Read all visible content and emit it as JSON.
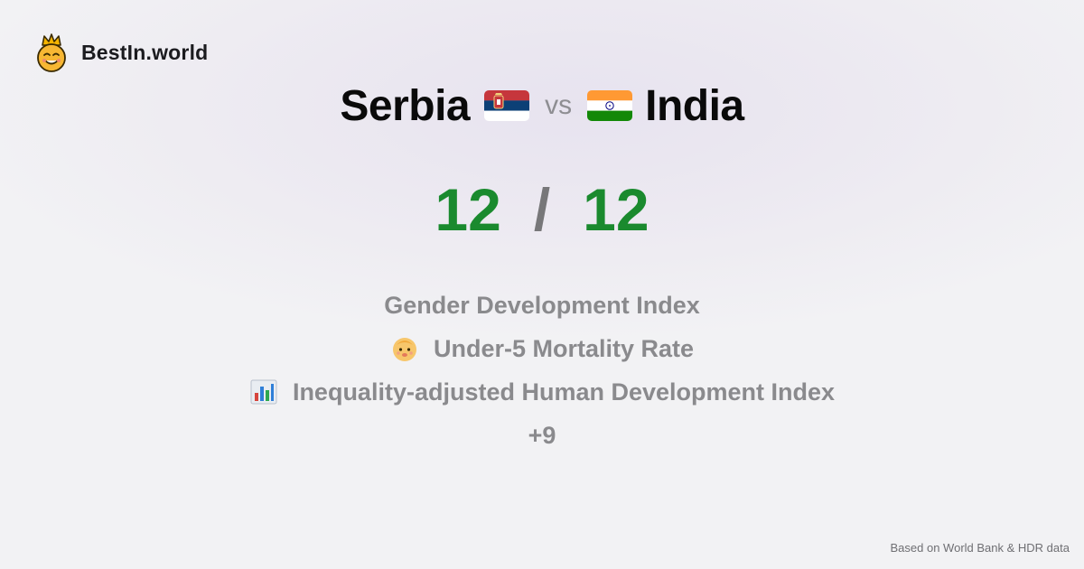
{
  "brand": {
    "name": "BestIn.world",
    "logo_icon": "crowned-smiley-icon"
  },
  "comparison": {
    "left": {
      "name": "Serbia",
      "flag_icon": "serbia-flag-icon",
      "score": "12"
    },
    "vs_label": "vs",
    "right": {
      "name": "India",
      "flag_icon": "india-flag-icon",
      "score": "12"
    },
    "separator": "/"
  },
  "metrics": [
    {
      "label": "Gender Development Index",
      "icon": ""
    },
    {
      "label": "Under-5 Mortality Rate",
      "icon": "baby-icon"
    },
    {
      "label": "Inequality-adjusted Human Development Index",
      "icon": "bar-chart-icon"
    }
  ],
  "more_label": "+9",
  "footer": {
    "source": "Based on World Bank & HDR data"
  },
  "colors": {
    "score": "#1a8a2e",
    "muted": "#8a8a8d",
    "text": "#0a0a0a"
  }
}
